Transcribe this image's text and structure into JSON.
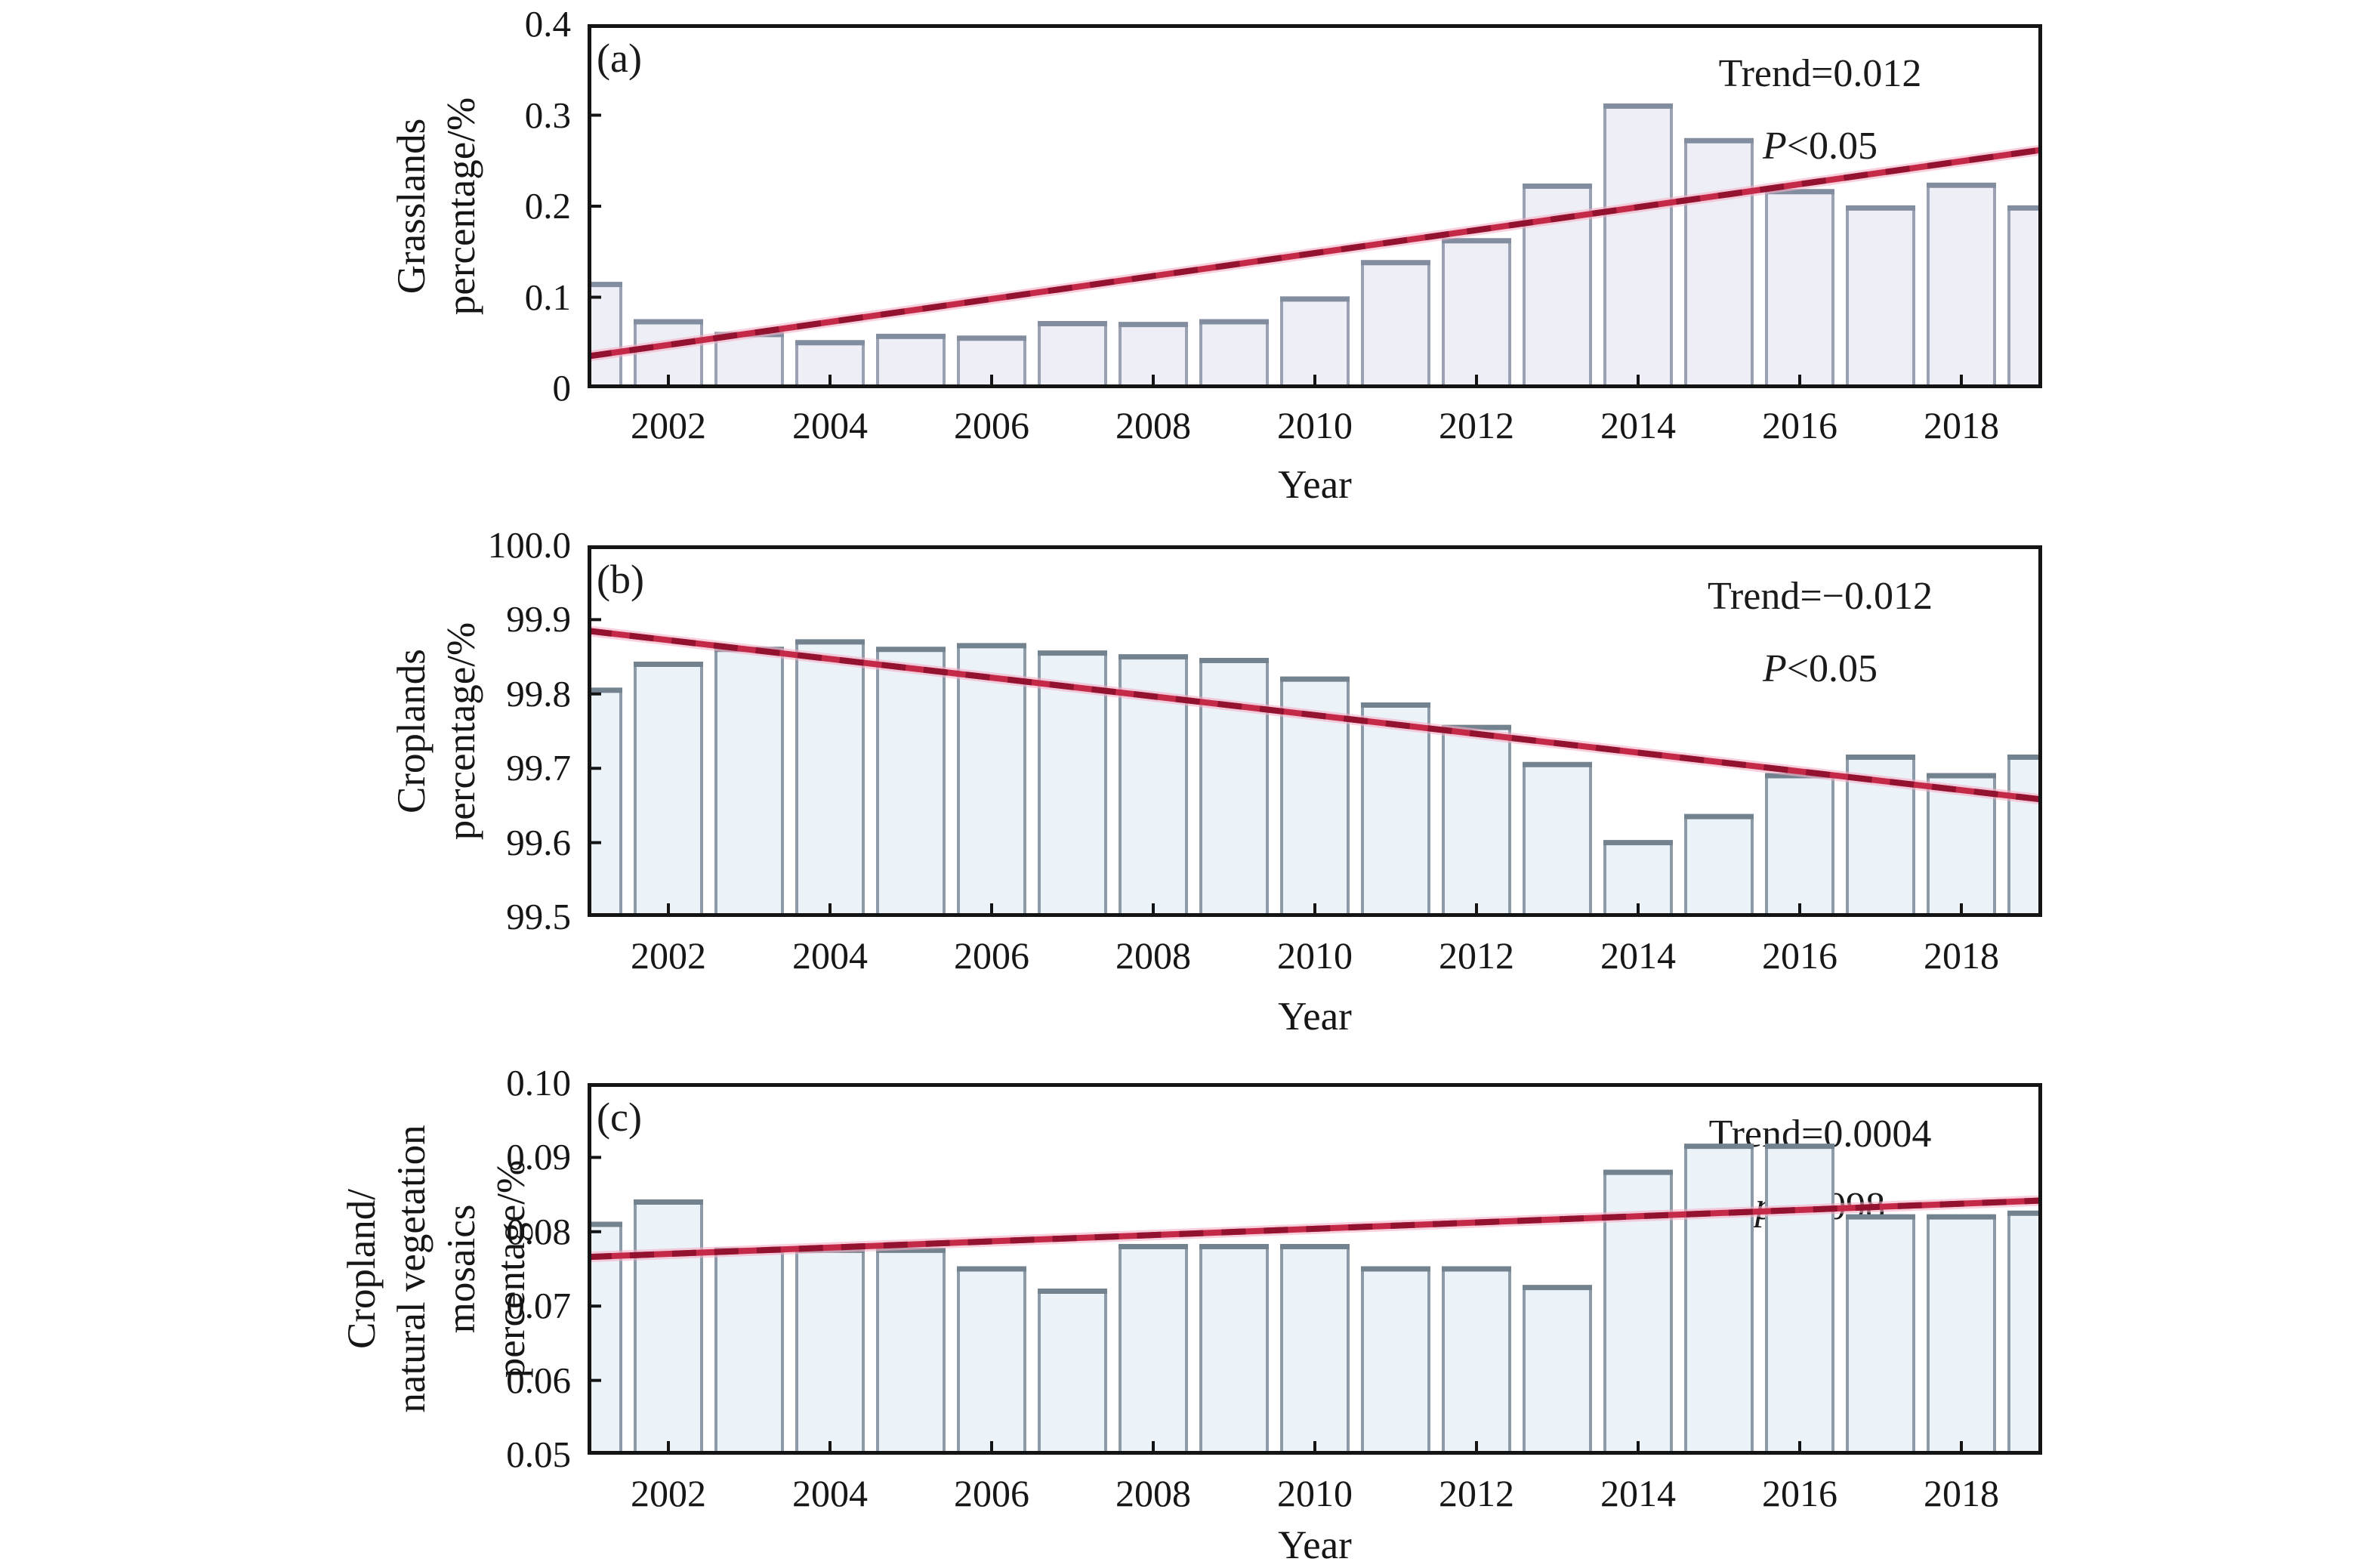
{
  "figure": {
    "background": "#ffffff",
    "frame_color": "#141414",
    "trend_core_color": "#931230",
    "trend_mid_color": "#c42a48",
    "trend_glow_color": "#f3afc4"
  },
  "chart_data": [
    {
      "id": "a",
      "type": "bar",
      "panel_label": "(a)",
      "ylabel_lines": [
        "Grasslands",
        "percentage/%"
      ],
      "xlabel": "Year",
      "trend_label": "Trend=0.012",
      "sig_prefix": "P",
      "sig_rest": "<0.05",
      "legend_position": "top-right",
      "grid": false,
      "xlim": [
        2001,
        2019
      ],
      "ylim": [
        0,
        0.4
      ],
      "years": [
        2001,
        2002,
        2003,
        2004,
        2005,
        2006,
        2007,
        2008,
        2009,
        2010,
        2011,
        2012,
        2013,
        2014,
        2015,
        2016,
        2017,
        2018,
        2019
      ],
      "values": [
        0.114,
        0.073,
        0.059,
        0.05,
        0.057,
        0.055,
        0.071,
        0.07,
        0.073,
        0.098,
        0.138,
        0.162,
        0.222,
        0.31,
        0.272,
        0.216,
        0.198,
        0.223,
        0.198
      ],
      "yticks": [
        {
          "v": 0.0,
          "label": "0"
        },
        {
          "v": 0.1,
          "label": "0.1"
        },
        {
          "v": 0.2,
          "label": "0.2"
        },
        {
          "v": 0.3,
          "label": "0.3"
        },
        {
          "v": 0.4,
          "label": "0.4"
        }
      ],
      "xticks": [
        2002,
        2004,
        2006,
        2008,
        2010,
        2012,
        2014,
        2016,
        2018
      ],
      "trend": {
        "x1": 2001,
        "v1": 0.035,
        "x2": 2019,
        "v2": 0.262
      },
      "bar_fill": "#eeeff6",
      "bar_border": "#9aa1b2",
      "bar_top": "#838da0"
    },
    {
      "id": "b",
      "type": "bar",
      "panel_label": "(b)",
      "ylabel_lines": [
        "Croplands",
        "percentage/%"
      ],
      "xlabel": "Year",
      "trend_label": "Trend=−0.012",
      "sig_prefix": "P",
      "sig_rest": "<0.05",
      "legend_position": "top-right",
      "grid": false,
      "xlim": [
        2001,
        2019
      ],
      "ylim": [
        99.5,
        100.0
      ],
      "years": [
        2001,
        2002,
        2003,
        2004,
        2005,
        2006,
        2007,
        2008,
        2009,
        2010,
        2011,
        2012,
        2013,
        2014,
        2015,
        2016,
        2017,
        2018,
        2019
      ],
      "values": [
        99.805,
        99.84,
        99.86,
        99.87,
        99.86,
        99.865,
        99.855,
        99.85,
        99.845,
        99.82,
        99.785,
        99.755,
        99.705,
        99.6,
        99.635,
        99.69,
        99.715,
        99.69,
        99.715
      ],
      "yticks": [
        {
          "v": 99.5,
          "label": "99.5"
        },
        {
          "v": 99.6,
          "label": "99.6"
        },
        {
          "v": 99.7,
          "label": "99.7"
        },
        {
          "v": 99.8,
          "label": "99.8"
        },
        {
          "v": 99.9,
          "label": "99.9"
        },
        {
          "v": 100.0,
          "label": "100.0"
        }
      ],
      "xticks": [
        2002,
        2004,
        2006,
        2008,
        2010,
        2012,
        2014,
        2016,
        2018
      ],
      "trend": {
        "x1": 2001,
        "v1": 99.885,
        "x2": 2019,
        "v2": 99.658
      },
      "bar_fill": "#ebf3f9",
      "bar_border": "#8d9aa8",
      "bar_top": "#73828f"
    },
    {
      "id": "c",
      "type": "bar",
      "panel_label": "(c)",
      "ylabel_lines": [
        "Cropland/",
        "natural vegetation mosaics",
        "percentage/%"
      ],
      "xlabel": "Year",
      "trend_label": "Trend=0.0004",
      "sig_prefix": "p",
      "sig_rest": "=0.098",
      "legend_position": "top-right",
      "grid": false,
      "xlim": [
        2001,
        2019
      ],
      "ylim": [
        0.05,
        0.1
      ],
      "years": [
        2001,
        2002,
        2003,
        2004,
        2005,
        2006,
        2007,
        2008,
        2009,
        2010,
        2011,
        2012,
        2013,
        2014,
        2015,
        2016,
        2017,
        2018,
        2019
      ],
      "values": [
        0.081,
        0.084,
        0.0775,
        0.0775,
        0.0775,
        0.075,
        0.072,
        0.078,
        0.078,
        0.078,
        0.075,
        0.075,
        0.0725,
        0.088,
        0.0915,
        0.0915,
        0.082,
        0.082,
        0.0825
      ],
      "yticks": [
        {
          "v": 0.05,
          "label": "0.05"
        },
        {
          "v": 0.06,
          "label": "0.06"
        },
        {
          "v": 0.07,
          "label": "0.07"
        },
        {
          "v": 0.08,
          "label": "0.08"
        },
        {
          "v": 0.09,
          "label": "0.09"
        },
        {
          "v": 0.1,
          "label": "0.10"
        }
      ],
      "xticks": [
        2002,
        2004,
        2006,
        2008,
        2010,
        2012,
        2014,
        2016,
        2018
      ],
      "trend": {
        "x1": 2001,
        "v1": 0.0766,
        "x2": 2019,
        "v2": 0.0842
      },
      "bar_fill": "#ebf3f9",
      "bar_border": "#8d9aa8",
      "bar_top": "#73828f"
    }
  ]
}
